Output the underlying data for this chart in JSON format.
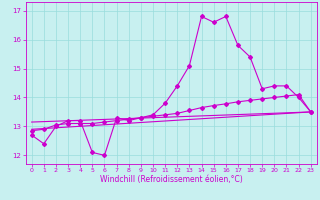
{
  "xlabel": "Windchill (Refroidissement éolien,°C)",
  "bg_color": "#c8f0f0",
  "line_color": "#cc00cc",
  "grid_color": "#99dddd",
  "xlim": [
    -0.5,
    23.5
  ],
  "ylim": [
    11.7,
    17.3
  ],
  "xticks": [
    0,
    1,
    2,
    3,
    4,
    5,
    6,
    7,
    8,
    9,
    10,
    11,
    12,
    13,
    14,
    15,
    16,
    17,
    18,
    19,
    20,
    21,
    22,
    23
  ],
  "yticks": [
    12,
    13,
    14,
    15,
    16,
    17
  ],
  "line1": {
    "x": [
      0,
      1,
      2,
      3,
      4,
      5,
      6,
      7,
      8,
      9,
      10,
      11,
      12,
      13,
      14,
      15,
      16,
      17,
      18,
      19,
      20,
      21,
      22,
      23
    ],
    "y": [
      12.7,
      12.4,
      13.0,
      13.2,
      13.2,
      12.1,
      12.0,
      13.3,
      13.2,
      13.3,
      13.4,
      13.8,
      14.4,
      15.1,
      16.8,
      16.6,
      16.8,
      15.8,
      15.4,
      14.3,
      14.4,
      14.4,
      14.0,
      13.5
    ]
  },
  "line2": {
    "x": [
      0,
      1,
      2,
      3,
      4,
      5,
      6,
      7,
      8,
      9,
      10,
      11,
      12,
      13,
      14,
      15,
      16,
      17,
      18,
      19,
      20,
      21,
      22,
      23
    ],
    "y": [
      12.85,
      12.9,
      13.05,
      13.1,
      13.1,
      13.1,
      13.15,
      13.2,
      13.25,
      13.3,
      13.35,
      13.4,
      13.45,
      13.55,
      13.65,
      13.72,
      13.78,
      13.85,
      13.9,
      13.95,
      14.0,
      14.05,
      14.1,
      13.5
    ]
  },
  "line3": {
    "x": [
      0,
      23
    ],
    "y": [
      12.9,
      13.5
    ]
  },
  "line4": {
    "x": [
      0,
      23
    ],
    "y": [
      13.15,
      13.5
    ]
  },
  "marker": "D",
  "markersize": 2.0,
  "linewidth": 0.8,
  "tick_fontsize": 4.5,
  "xlabel_fontsize": 5.5
}
